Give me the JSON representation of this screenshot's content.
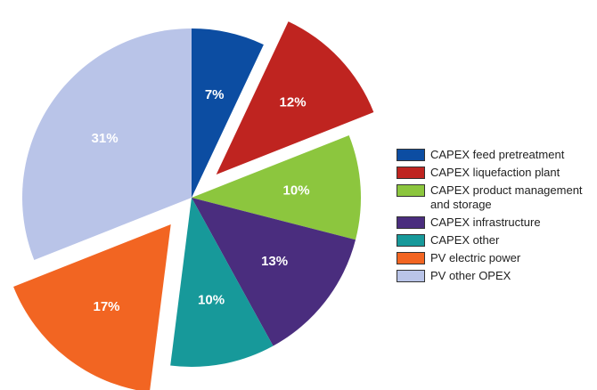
{
  "chart_data": {
    "type": "pie",
    "categories": [
      "CAPEX feed pretreatment",
      "CAPEX liquefaction plant",
      "CAPEX product management and storage",
      "CAPEX infrastructure",
      "CAPEX other",
      "PV electric power",
      "PV other OPEX"
    ],
    "values": [
      7,
      12,
      10,
      13,
      10,
      17,
      31
    ],
    "value_labels": [
      "7%",
      "12%",
      "10%",
      "13%",
      "10%",
      "17%",
      "31%"
    ],
    "colors": [
      "#0c4da2",
      "#bf2420",
      "#8cc63e",
      "#4a2d7e",
      "#17999a",
      "#f26522",
      "#b9c4e8"
    ],
    "exploded": [
      false,
      true,
      false,
      false,
      false,
      true,
      false
    ],
    "legend": "right"
  }
}
